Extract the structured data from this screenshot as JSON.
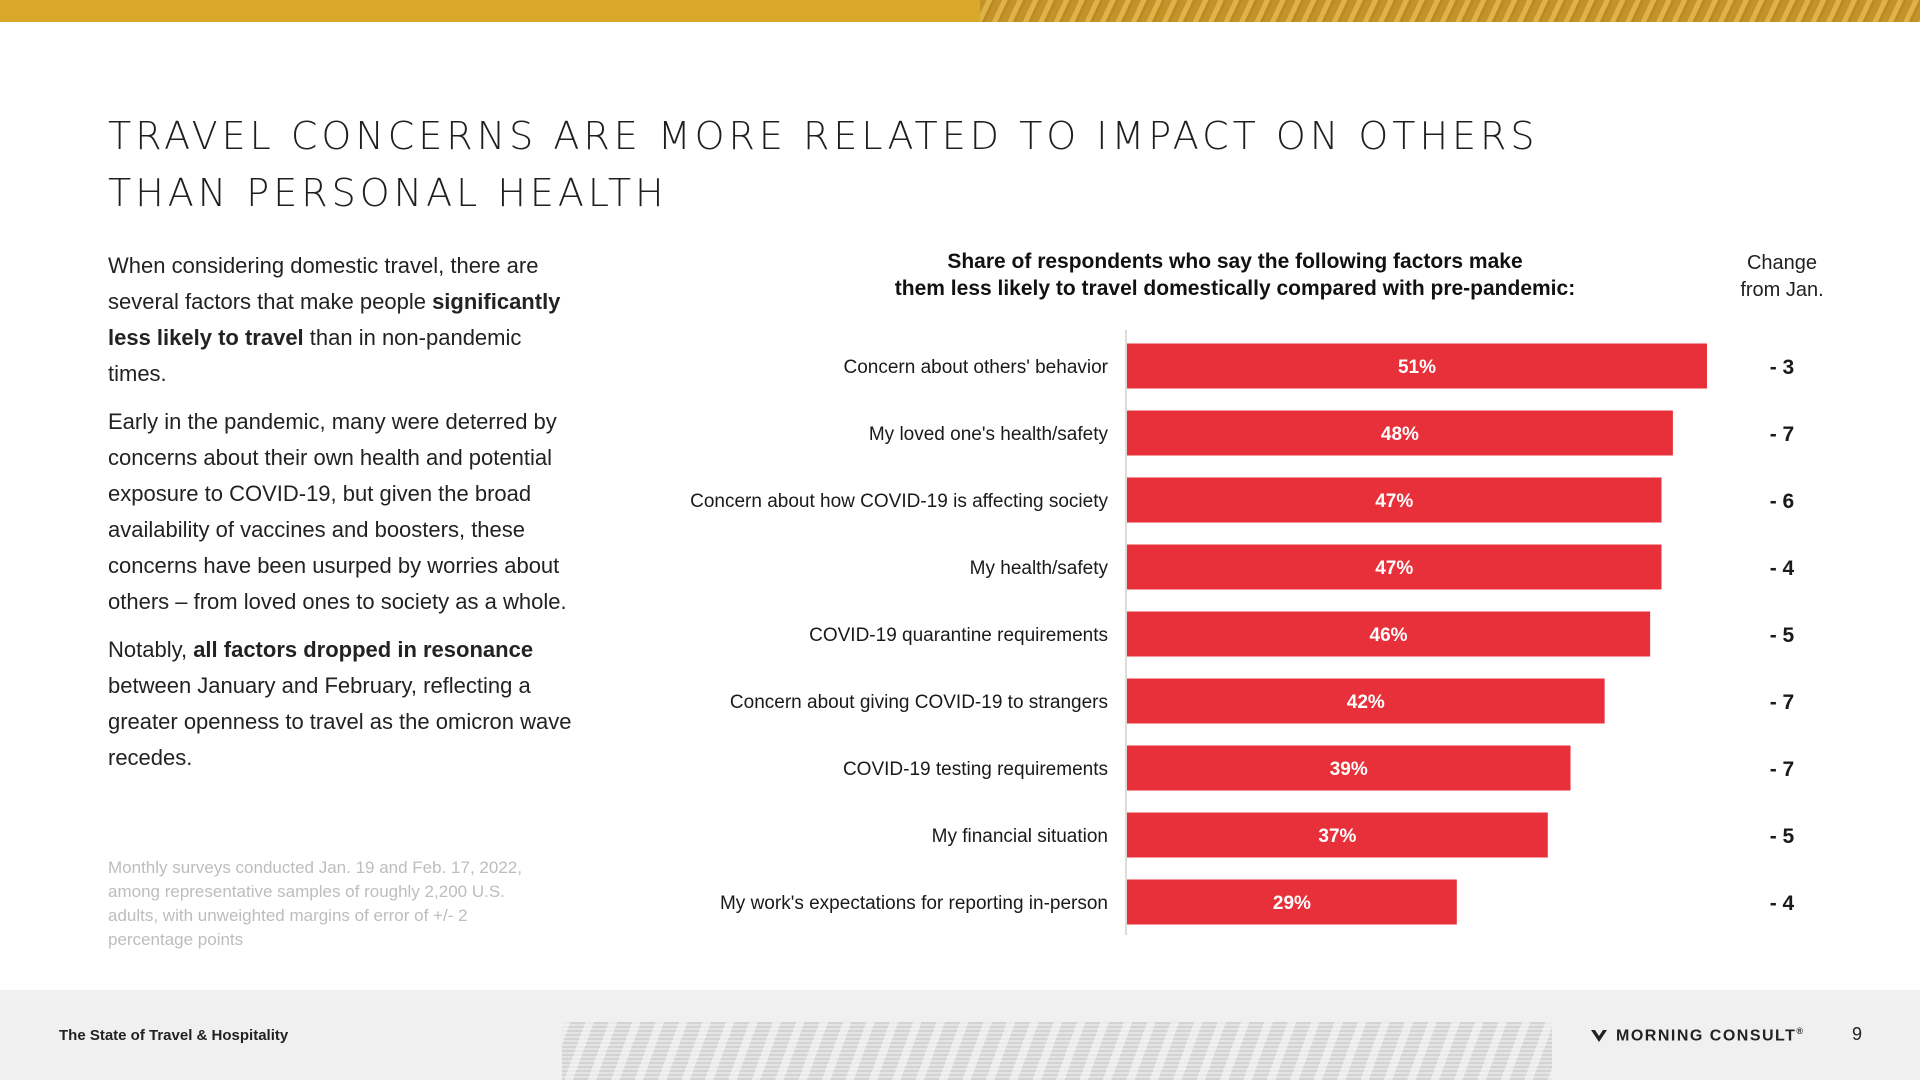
{
  "header": {
    "title": "TRAVEL CONCERNS ARE MORE RELATED TO IMPACT ON OTHERS THAN PERSONAL HEALTH"
  },
  "body": {
    "p1_a": "When considering domestic travel, there are several factors that make people ",
    "p1_b": "significantly less likely to travel",
    "p1_c": " than in non-pandemic times.",
    "p2": "Early in the pandemic, many were deterred by concerns about their own health and potential exposure to COVID-19, but given the broad availability of vaccines and boosters, these concerns have been usurped by worries about others – from loved ones to society as a whole.",
    "p3_a": "Notably, ",
    "p3_b": "all factors dropped in resonance",
    "p3_c": " between January and February, reflecting a greater openness to travel as the omicron wave recedes."
  },
  "footnote": "Monthly surveys conducted Jan. 19 and Feb. 17, 2022, among representative samples of roughly 2,200 U.S. adults, with unweighted margins of error of +/- 2 percentage points",
  "change_header": {
    "line1": "Change",
    "line2": "from Jan."
  },
  "chart_data": {
    "type": "bar",
    "orientation": "horizontal",
    "title": "Share of respondents who say the following factors make them less likely to travel domestically compared with pre-pandemic:",
    "title_line1": "Share of respondents who say the following factors make",
    "title_line2": "them less likely to travel domestically compared with pre-pandemic:",
    "categories": [
      "Concern about others' behavior",
      "My loved one's health/safety",
      "Concern about how COVID-19 is affecting society",
      "My health/safety",
      "COVID-19 quarantine requirements",
      "Concern about giving COVID-19 to strangers",
      "COVID-19 testing requirements",
      "My financial situation",
      "My work's expectations for reporting in-person"
    ],
    "values": [
      51,
      48,
      47,
      47,
      46,
      42,
      39,
      37,
      29
    ],
    "value_labels": [
      "51%",
      "48%",
      "47%",
      "47%",
      "46%",
      "42%",
      "39%",
      "37%",
      "29%"
    ],
    "change_labels": [
      "- 3",
      "- 7",
      "- 6",
      "- 4",
      "- 5",
      "- 7",
      "- 7",
      "- 5",
      "- 4"
    ],
    "bar_color": "#e8303a",
    "label_color": "#ffffff",
    "xlim": [
      0,
      51
    ],
    "grid": false,
    "legend": "none"
  },
  "footer": {
    "report_name": "The State of Travel & Hospitality",
    "brand": "MORNING CONSULT",
    "brand_mark": "®",
    "page_number": "9"
  },
  "colors": {
    "accent_gold": "#d9a82a",
    "bar_red": "#e8303a",
    "footer_bg": "#f0f0f0"
  }
}
